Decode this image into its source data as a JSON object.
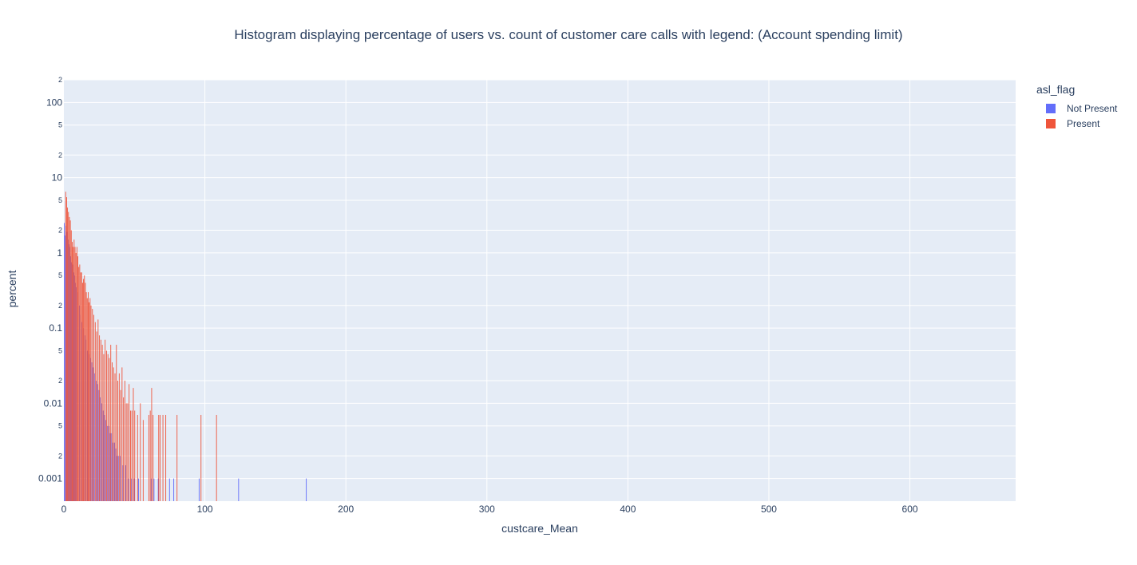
{
  "chart_data": {
    "type": "bar",
    "title": "Histogram displaying percentage of users vs. count of customer care calls with legend: (Account spending limit)",
    "xlabel": "custcare_Mean",
    "ylabel": "percent",
    "x_scale": "linear",
    "y_scale": "log",
    "xlim": [
      0,
      675
    ],
    "ylim": [
      0.0005,
      200
    ],
    "x_ticks": [
      0,
      100,
      200,
      300,
      400,
      500,
      600
    ],
    "y_ticks_major": [
      {
        "value": 0.001,
        "label": "0.001"
      },
      {
        "value": 0.01,
        "label": "0.01"
      },
      {
        "value": 0.1,
        "label": "0.1"
      },
      {
        "value": 1,
        "label": "1"
      },
      {
        "value": 10,
        "label": "10"
      },
      {
        "value": 100,
        "label": "100"
      }
    ],
    "y_ticks_minor_labels": [
      "2",
      "5"
    ],
    "barmode": "group",
    "bin_width": 0.67,
    "grid": true,
    "legend_position": "top-right, outside plot",
    "legend_title": "asl_flag",
    "series": [
      {
        "name": "Not Present",
        "color": "#636efa",
        "points": [
          [
            0.33,
            2.5
          ],
          [
            1.0,
            1.7
          ],
          [
            1.67,
            2.3
          ],
          [
            2.33,
            1.9
          ],
          [
            3.0,
            1.5
          ],
          [
            3.67,
            1.3
          ],
          [
            4.33,
            1.2
          ],
          [
            5.0,
            0.9
          ],
          [
            5.67,
            0.75
          ],
          [
            6.33,
            0.7
          ],
          [
            7.0,
            0.55
          ],
          [
            7.67,
            0.5
          ],
          [
            8.33,
            0.4
          ],
          [
            9.0,
            0.35
          ],
          [
            10.0,
            0.3
          ],
          [
            11.0,
            0.2
          ],
          [
            12.0,
            0.15
          ],
          [
            13.0,
            0.12
          ],
          [
            14.0,
            0.1
          ],
          [
            15.0,
            0.08
          ],
          [
            16.0,
            0.07
          ],
          [
            17.0,
            0.05
          ],
          [
            18.0,
            0.045
          ],
          [
            19.0,
            0.04
          ],
          [
            20.0,
            0.035
          ],
          [
            21.0,
            0.03
          ],
          [
            22.0,
            0.025
          ],
          [
            23.0,
            0.02
          ],
          [
            24.0,
            0.018
          ],
          [
            25.0,
            0.015
          ],
          [
            26.0,
            0.012
          ],
          [
            27.0,
            0.01
          ],
          [
            28.0,
            0.008
          ],
          [
            29.0,
            0.007
          ],
          [
            30.0,
            0.006
          ],
          [
            31.0,
            0.005
          ],
          [
            32.0,
            0.005
          ],
          [
            33.0,
            0.004
          ],
          [
            34.0,
            0.004
          ],
          [
            35.0,
            0.003
          ],
          [
            36.0,
            0.003
          ],
          [
            37.0,
            0.0025
          ],
          [
            38.0,
            0.002
          ],
          [
            39.0,
            0.002
          ],
          [
            40.0,
            0.002
          ],
          [
            42.0,
            0.0015
          ],
          [
            44.0,
            0.0015
          ],
          [
            46.0,
            0.001
          ],
          [
            48.0,
            0.001
          ],
          [
            50.0,
            0.001
          ],
          [
            53.0,
            0.001
          ],
          [
            62.0,
            0.001
          ],
          [
            64.0,
            0.001
          ],
          [
            67.0,
            0.001
          ],
          [
            75.0,
            0.001
          ],
          [
            78.0,
            0.001
          ],
          [
            96.0,
            0.001
          ],
          [
            124.0,
            0.001
          ],
          [
            172.0,
            0.001
          ]
        ]
      },
      {
        "name": "Present",
        "color": "#ef553b",
        "points": [
          [
            1.0,
            6.5
          ],
          [
            1.67,
            5.5
          ],
          [
            2.33,
            4.0
          ],
          [
            3.0,
            3.5
          ],
          [
            3.67,
            3.0
          ],
          [
            4.33,
            2.7
          ],
          [
            5.0,
            2.0
          ],
          [
            5.67,
            1.4
          ],
          [
            6.33,
            1.2
          ],
          [
            7.0,
            1.5
          ],
          [
            7.67,
            1.2
          ],
          [
            8.33,
            1.0
          ],
          [
            9.0,
            1.2
          ],
          [
            9.67,
            0.9
          ],
          [
            10.33,
            0.65
          ],
          [
            11.0,
            0.7
          ],
          [
            11.67,
            0.55
          ],
          [
            12.33,
            0.55
          ],
          [
            13.0,
            0.4
          ],
          [
            13.67,
            0.45
          ],
          [
            14.33,
            0.5
          ],
          [
            15.0,
            0.4
          ],
          [
            15.67,
            0.3
          ],
          [
            16.33,
            0.25
          ],
          [
            17.0,
            0.3
          ],
          [
            17.67,
            0.22
          ],
          [
            18.33,
            0.25
          ],
          [
            19.0,
            0.2
          ],
          [
            20.0,
            0.18
          ],
          [
            21.0,
            0.15
          ],
          [
            22.0,
            0.12
          ],
          [
            23.0,
            0.09
          ],
          [
            24.0,
            0.13
          ],
          [
            25.0,
            0.08
          ],
          [
            26.0,
            0.07
          ],
          [
            27.0,
            0.06
          ],
          [
            28.0,
            0.045
          ],
          [
            29.0,
            0.07
          ],
          [
            30.0,
            0.05
          ],
          [
            31.0,
            0.045
          ],
          [
            32.0,
            0.04
          ],
          [
            33.0,
            0.06
          ],
          [
            34.0,
            0.035
          ],
          [
            35.0,
            0.03
          ],
          [
            36.0,
            0.025
          ],
          [
            37.0,
            0.06
          ],
          [
            38.0,
            0.02
          ],
          [
            39.0,
            0.025
          ],
          [
            40.0,
            0.015
          ],
          [
            41.0,
            0.03
          ],
          [
            42.0,
            0.012
          ],
          [
            43.0,
            0.02
          ],
          [
            44.0,
            0.01
          ],
          [
            45.0,
            0.01
          ],
          [
            46.0,
            0.018
          ],
          [
            47.0,
            0.008
          ],
          [
            48.0,
            0.008
          ],
          [
            49.0,
            0.016
          ],
          [
            50.0,
            0.008
          ],
          [
            52.0,
            0.007
          ],
          [
            54.0,
            0.01
          ],
          [
            56.0,
            0.006
          ],
          [
            60.0,
            0.007
          ],
          [
            61.0,
            0.008
          ],
          [
            62.0,
            0.016
          ],
          [
            63.0,
            0.007
          ],
          [
            67.0,
            0.007
          ],
          [
            68.0,
            0.007
          ],
          [
            70.0,
            0.007
          ],
          [
            72.0,
            0.007
          ],
          [
            80.0,
            0.007
          ],
          [
            97.0,
            0.007
          ],
          [
            108.0,
            0.007
          ]
        ]
      }
    ]
  }
}
